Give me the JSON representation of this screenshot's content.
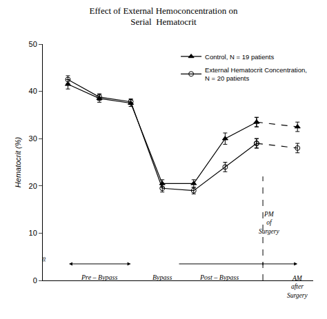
{
  "chart_data": {
    "type": "line",
    "title": "Effect of External Hemoconcentration on\nSerial  Hematocrit",
    "y_label": "Hematocrit (%)",
    "x": [
      1,
      2,
      3,
      4,
      5,
      6,
      7,
      8.3
    ],
    "xlim": [
      0.2,
      8.8
    ],
    "ylim": [
      0,
      50
    ],
    "yticks": [
      0,
      10,
      20,
      30,
      40,
      50
    ],
    "tick_labels": "y",
    "grid": false,
    "legend": "upper right",
    "series": [
      {
        "name": "Control, N = 19 patients",
        "color": "black",
        "marker": "triangle-up",
        "line_style": "solid",
        "values": [
          41.5,
          38.5,
          37.5,
          20.5,
          20.5,
          30.0,
          33.5,
          32.5
        ],
        "errors": [
          1.0,
          0.8,
          0.7,
          0.8,
          0.8,
          1.2,
          1.0,
          1.0
        ]
      },
      {
        "name": "External Hematocrit Concentration,\nN = 20 patients",
        "color": "black",
        "marker": "circle-open",
        "line_style": "solid",
        "values": [
          42.5,
          38.8,
          37.8,
          19.5,
          19.0,
          24.0,
          29.0,
          28.0
        ],
        "errors": [
          0.8,
          0.7,
          0.6,
          0.8,
          0.7,
          1.0,
          1.0,
          1.0
        ]
      }
    ],
    "annotations": [
      "Pre – Bypass",
      "Bypass",
      "Post – Bypass",
      "PM\nof\nSurgery",
      "AM\nafter\nSurgery",
      "≈"
    ]
  }
}
